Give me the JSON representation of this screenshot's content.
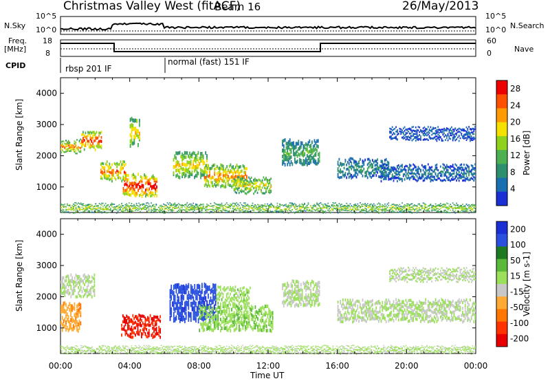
{
  "title": {
    "station": "Christmas Valley West (fitACF)",
    "beam": "Beam 16",
    "date": "26/May/2013"
  },
  "top_panels": {
    "nsky_label": "N.Sky",
    "nsearch_label": "N.Search",
    "left_ticks": [
      "10^5",
      "10^0"
    ],
    "right_ticks": [
      "10^5",
      "10^0"
    ],
    "freq_label_1": "Freq.",
    "freq_label_2": "[MHz]",
    "freq_ticks": [
      "18",
      "8"
    ],
    "nave_label": "Nave",
    "nave_ticks": [
      "60",
      "0"
    ],
    "cpid_label": "CPID",
    "cpid_segments": [
      "rbsp 201 IF",
      "normal (fast) 151 IF"
    ]
  },
  "x_axis": {
    "label": "Time UT",
    "ticks": [
      "00:00",
      "04:00",
      "08:00",
      "12:00",
      "16:00",
      "20:00",
      "00:00"
    ]
  },
  "chart_data": [
    {
      "type": "heatmap",
      "name": "power",
      "ylabel": "Slant Range [km]",
      "y_ticks": [
        1000,
        2000,
        3000,
        4000
      ],
      "ylim": [
        180,
        4500
      ],
      "xlim_hours": [
        0,
        24
      ],
      "colorbar_label": "Power [dB]",
      "colorbar_ticks": [
        4,
        8,
        12,
        16,
        20,
        24,
        28
      ],
      "colorbar_range": [
        0,
        30
      ],
      "colors": [
        "#1b2fd6",
        "#1a6fb0",
        "#2e8f6e",
        "#4cb050",
        "#8fd21e",
        "#f5e000",
        "#ff9a00",
        "#ff5000",
        "#ee0000"
      ],
      "features": [
        {
          "t": [
            0.0,
            1.2
          ],
          "r": [
            2100,
            2500
          ],
          "level": 0.7
        },
        {
          "t": [
            1.2,
            2.4
          ],
          "r": [
            2200,
            2800
          ],
          "level": 0.8
        },
        {
          "t": [
            2.3,
            3.8
          ],
          "r": [
            1200,
            1800
          ],
          "level": 0.75
        },
        {
          "t": [
            3.6,
            5.6
          ],
          "r": [
            700,
            1400
          ],
          "level": 0.9
        },
        {
          "t": [
            4.0,
            4.6
          ],
          "r": [
            2300,
            3200
          ],
          "level": 0.6
        },
        {
          "t": [
            6.5,
            8.5
          ],
          "r": [
            1300,
            2100
          ],
          "level": 0.6
        },
        {
          "t": [
            8.3,
            10.8
          ],
          "r": [
            1000,
            1700
          ],
          "level": 0.7
        },
        {
          "t": [
            10.0,
            12.2
          ],
          "r": [
            800,
            1300
          ],
          "level": 0.55
        },
        {
          "t": [
            12.8,
            15.0
          ],
          "r": [
            1700,
            2500
          ],
          "level": 0.35
        },
        {
          "t": [
            16.0,
            19.0
          ],
          "r": [
            1300,
            1900
          ],
          "level": 0.25
        },
        {
          "t": [
            18.5,
            24.0
          ],
          "r": [
            1200,
            1700
          ],
          "level": 0.2
        },
        {
          "t": [
            19.0,
            24.0
          ],
          "r": [
            2500,
            2900
          ],
          "level": 0.15
        },
        {
          "t": [
            0.0,
            24.0
          ],
          "r": [
            200,
            450
          ],
          "level": 0.5
        }
      ]
    },
    {
      "type": "heatmap",
      "name": "velocity",
      "ylabel": "Slant Range [km]",
      "y_ticks": [
        1000,
        2000,
        3000,
        4000
      ],
      "ylim": [
        180,
        4500
      ],
      "xlim_hours": [
        0,
        24
      ],
      "colorbar_label": "Velocity [m s-1]",
      "colorbar_ticks": [
        200,
        100,
        50,
        15,
        -15,
        -50,
        -100,
        -200
      ],
      "colorbar_range": [
        -250,
        250
      ],
      "colors": [
        "#1b2fd6",
        "#2a50e0",
        "#1e7a1e",
        "#5ab83a",
        "#9be05a",
        "#c8c8c8",
        "#ffaa33",
        "#ff7700",
        "#ff3300",
        "#e80000"
      ],
      "features": [
        {
          "t": [
            0.0,
            2.0
          ],
          "r": [
            2000,
            2700
          ],
          "vel": 0
        },
        {
          "t": [
            0.0,
            1.2
          ],
          "r": [
            900,
            1800
          ],
          "vel": -80
        },
        {
          "t": [
            3.5,
            5.8
          ],
          "r": [
            700,
            1400
          ],
          "vel": -200
        },
        {
          "t": [
            6.3,
            9.0
          ],
          "r": [
            1200,
            2400
          ],
          "vel": 180
        },
        {
          "t": [
            8.0,
            12.3
          ],
          "r": [
            900,
            1700
          ],
          "vel": 40
        },
        {
          "t": [
            9.0,
            11.0
          ],
          "r": [
            1700,
            2300
          ],
          "vel": 25
        },
        {
          "t": [
            12.8,
            15.0
          ],
          "r": [
            1700,
            2500
          ],
          "vel": 0
        },
        {
          "t": [
            16.0,
            24.0
          ],
          "r": [
            1200,
            1900
          ],
          "vel": 0
        },
        {
          "t": [
            19.0,
            24.0
          ],
          "r": [
            2500,
            2900
          ],
          "vel": 0
        },
        {
          "t": [
            0.0,
            24.0
          ],
          "r": [
            200,
            400
          ],
          "vel": 15
        }
      ]
    }
  ]
}
